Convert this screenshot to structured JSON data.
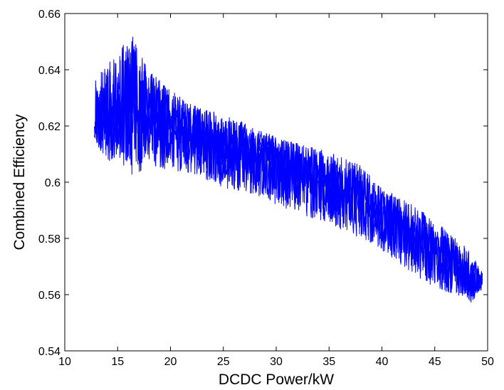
{
  "chart_data": {
    "type": "line",
    "title": "",
    "xlabel": "DCDC Power/kW",
    "ylabel": "Combined Efficiency",
    "xlim": [
      10,
      50
    ],
    "ylim": [
      0.54,
      0.66
    ],
    "x_ticks": [
      "10",
      "15",
      "20",
      "25",
      "30",
      "35",
      "40",
      "45",
      "50"
    ],
    "y_ticks": [
      "0.54",
      "0.56",
      "0.58",
      "0.6",
      "0.62",
      "0.64",
      "0.66"
    ],
    "grid": false,
    "legend": "none",
    "series": [
      {
        "color": "#0000ff",
        "trend": {
          "x": [
            12.8,
            14,
            15,
            16.5,
            18,
            20,
            22,
            25,
            28,
            30,
            32,
            35,
            38,
            40,
            42,
            45,
            47,
            48.5,
            49.5
          ],
          "y": [
            0.62,
            0.621,
            0.624,
            0.625,
            0.623,
            0.619,
            0.617,
            0.613,
            0.609,
            0.606,
            0.603,
            0.599,
            0.594,
            0.589,
            0.584,
            0.576,
            0.57,
            0.566,
            0.564
          ]
        },
        "band": {
          "x": [
            12.8,
            14,
            15,
            16.5,
            18,
            20,
            22,
            25,
            28,
            30,
            32,
            35,
            38,
            40,
            42,
            45,
            47,
            48.5,
            49.5
          ],
          "upper": [
            0.636,
            0.642,
            0.647,
            0.652,
            0.64,
            0.633,
            0.628,
            0.624,
            0.62,
            0.616,
            0.614,
            0.611,
            0.606,
            0.598,
            0.594,
            0.587,
            0.58,
            0.575,
            0.568
          ],
          "lower": [
            0.615,
            0.607,
            0.608,
            0.601,
            0.606,
            0.604,
            0.603,
            0.598,
            0.595,
            0.592,
            0.589,
            0.585,
            0.58,
            0.575,
            0.57,
            0.562,
            0.56,
            0.557,
            0.562
          ]
        }
      }
    ]
  }
}
